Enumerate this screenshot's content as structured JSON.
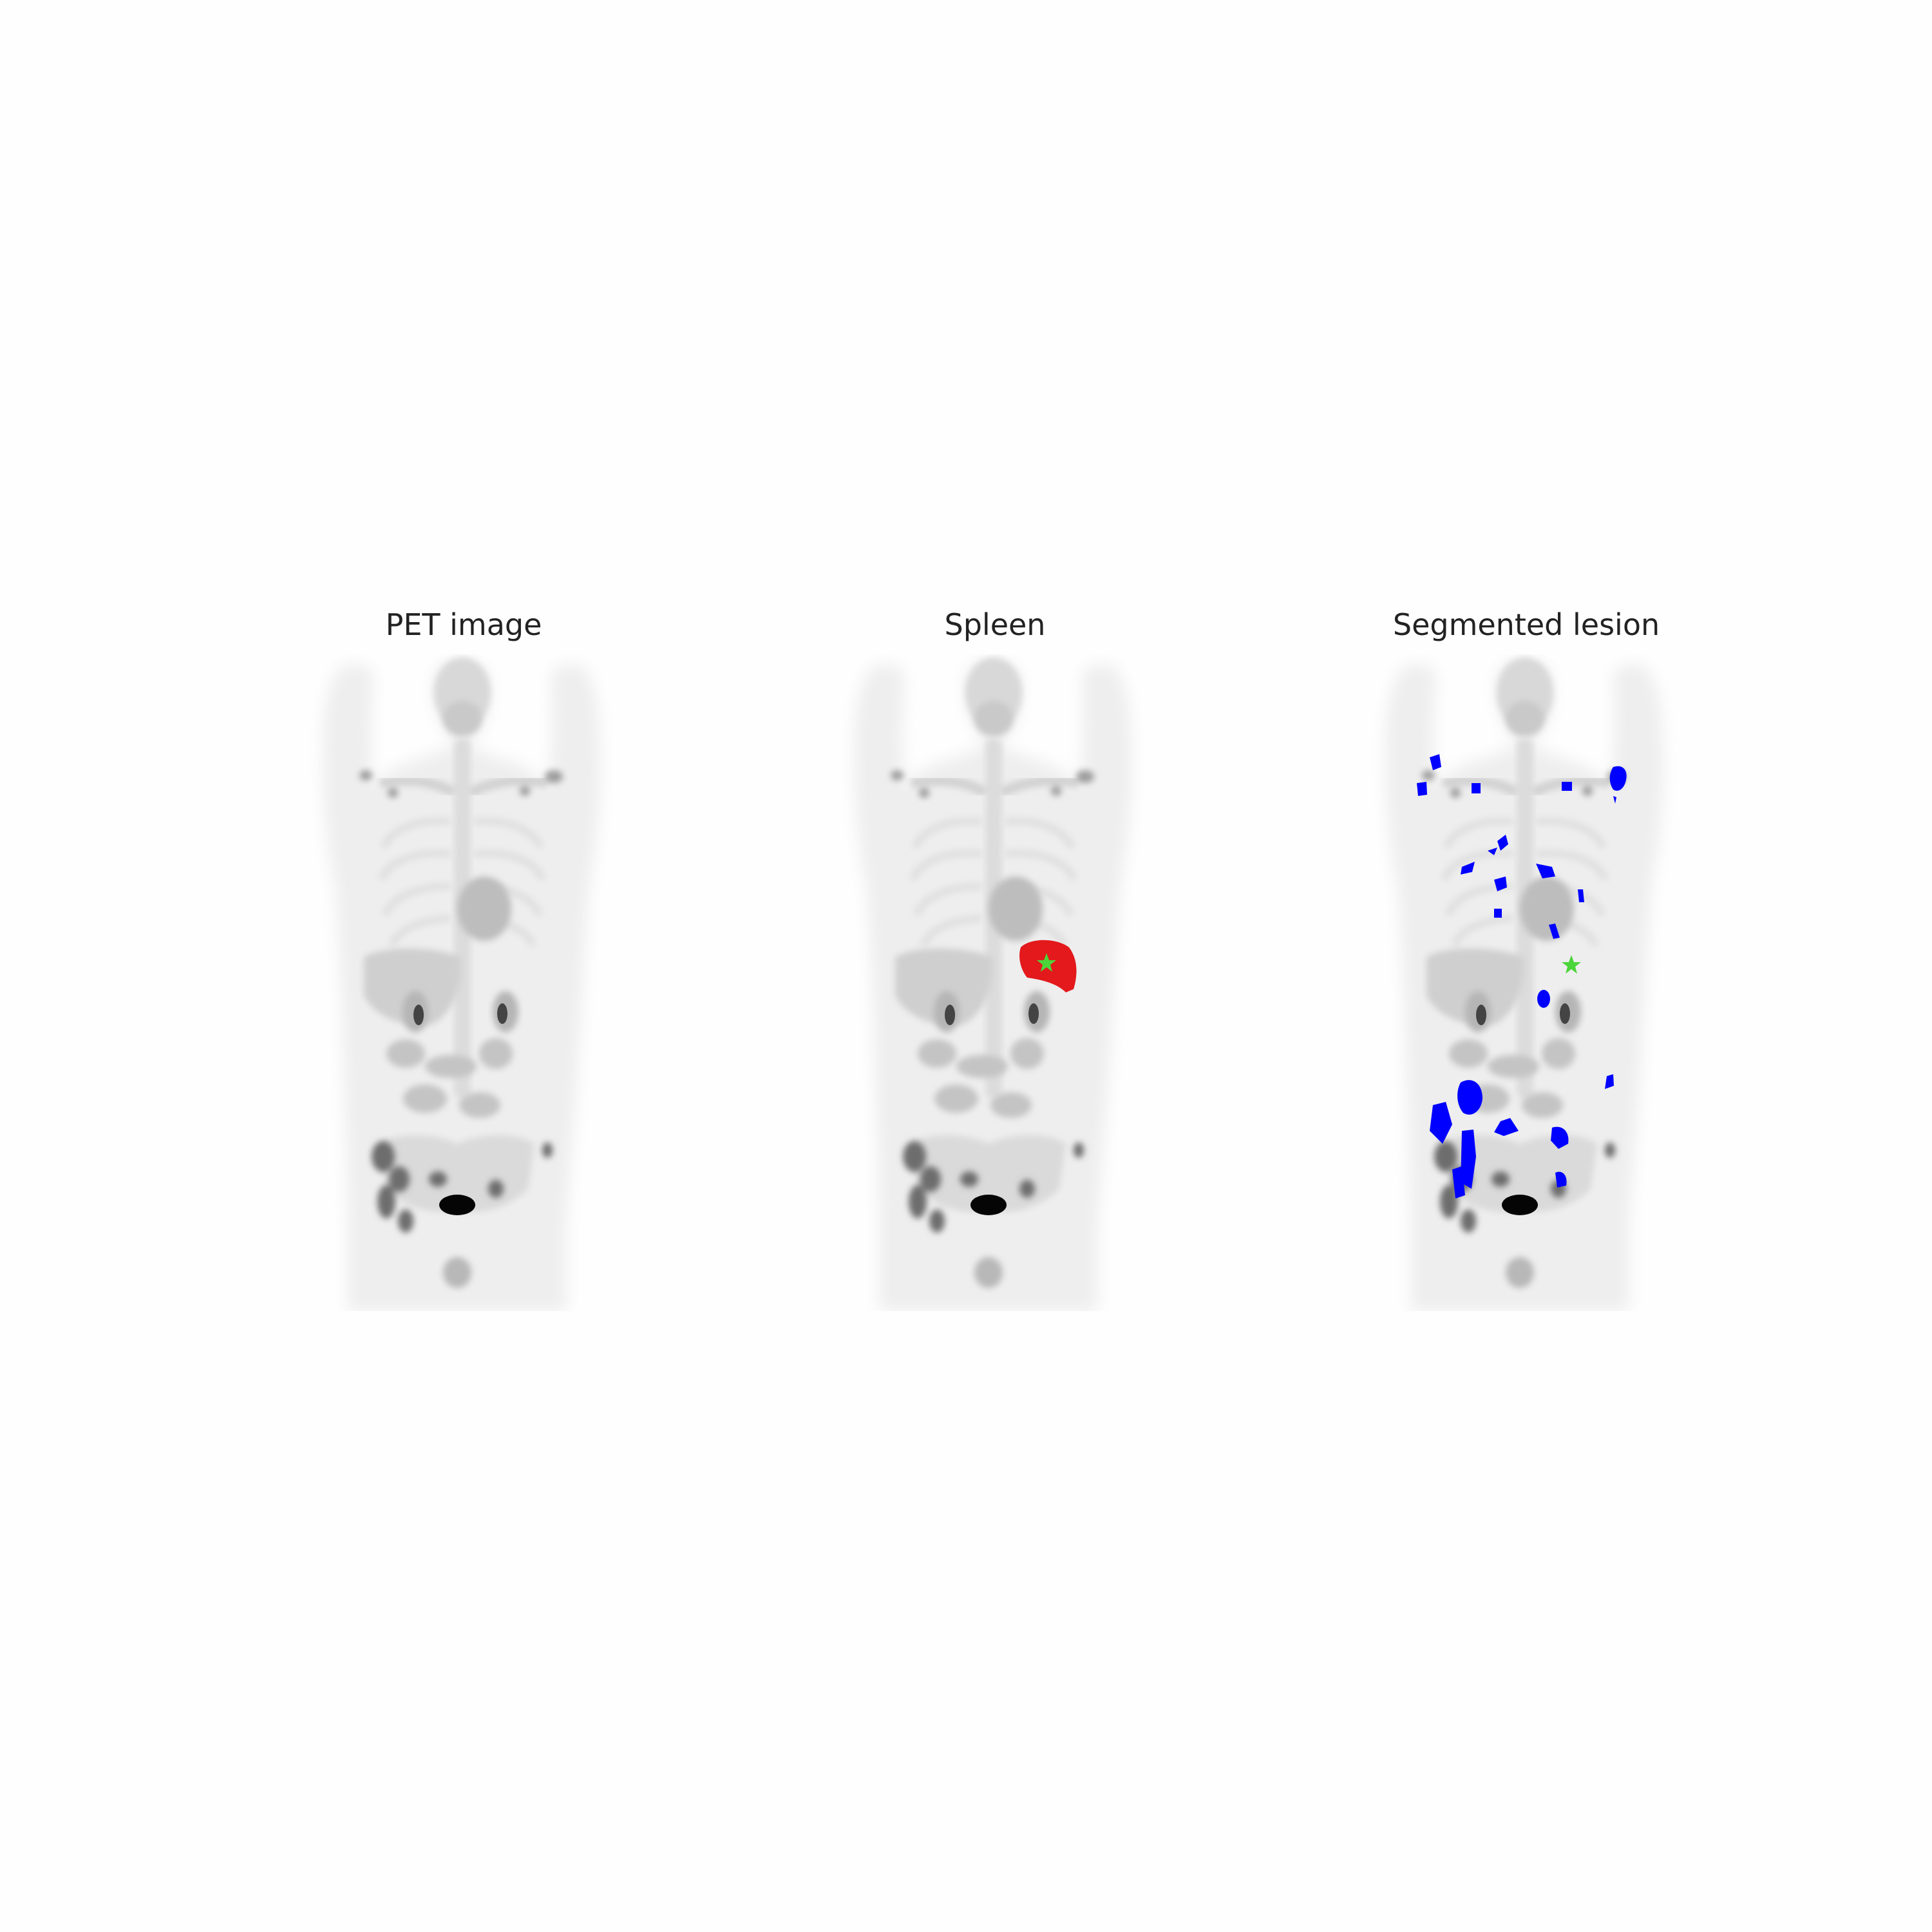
{
  "figure": {
    "panels": [
      {
        "title": "PET image",
        "overlay": "none"
      },
      {
        "title": "Spleen",
        "overlay": "spleen-mask",
        "mask_color": "#e3191c",
        "marker_color": "#4cd53a"
      },
      {
        "title": "Segmented lesion",
        "overlay": "lesion-mask",
        "mask_color": "#0000ff",
        "marker_color": "#4cd53a"
      }
    ]
  }
}
